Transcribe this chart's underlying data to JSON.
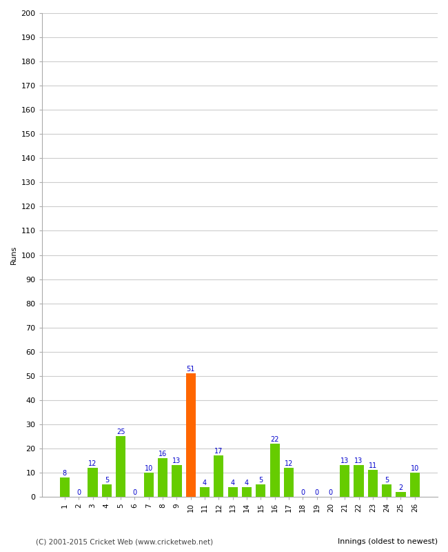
{
  "innings": [
    1,
    2,
    3,
    4,
    5,
    6,
    7,
    8,
    9,
    10,
    11,
    12,
    13,
    14,
    15,
    16,
    17,
    18,
    19,
    20,
    21,
    22,
    23,
    24,
    25,
    26
  ],
  "runs": [
    8,
    0,
    12,
    5,
    25,
    0,
    10,
    16,
    13,
    51,
    4,
    17,
    4,
    4,
    5,
    22,
    12,
    0,
    0,
    0,
    13,
    13,
    11,
    5,
    2,
    10
  ],
  "highlight_inning": 10,
  "bar_color_normal": "#66cc00",
  "bar_color_highlight": "#ff6600",
  "label_color": "#0000cc",
  "ylabel": "Runs",
  "xlabel": "Innings (oldest to newest)",
  "ylim": [
    0,
    200
  ],
  "yticks": [
    0,
    10,
    20,
    30,
    40,
    50,
    60,
    70,
    80,
    90,
    100,
    110,
    120,
    130,
    140,
    150,
    160,
    170,
    180,
    190,
    200
  ],
  "background_color": "#ffffff",
  "grid_color": "#cccccc",
  "footer": "(C) 2001-2015 Cricket Web (www.cricketweb.net)"
}
